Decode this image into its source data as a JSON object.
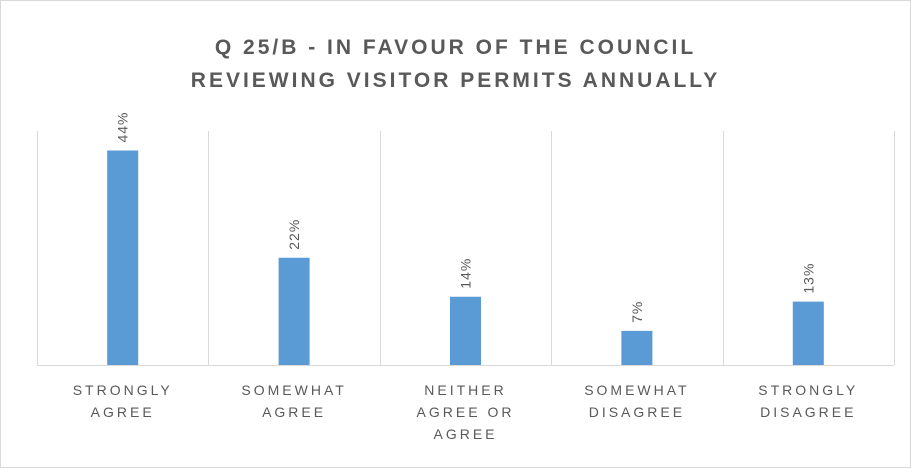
{
  "chart_data": {
    "type": "bar",
    "title": "Q 25/B - IN FAVOUR OF THE COUNCIL REVIEWING VISITOR PERMITS ANNUALLY",
    "title_lines": [
      "Q 25/B - IN FAVOUR OF THE COUNCIL",
      "REVIEWING VISITOR PERMITS ANNUALLY"
    ],
    "categories": [
      "STRONGLY AGREE",
      "SOMEWHAT AGREE",
      "NEITHER AGREE OR AGREE",
      "SOMEWHAT DISAGREE",
      "STRONGLY DISAGREE"
    ],
    "category_lines": [
      [
        "STRONGLY",
        "AGREE"
      ],
      [
        "SOMEWHAT",
        "AGREE"
      ],
      [
        "NEITHER",
        "AGREE OR",
        "AGREE"
      ],
      [
        "SOMEWHAT",
        "DISAGREE"
      ],
      [
        "STRONGLY",
        "DISAGREE"
      ]
    ],
    "values": [
      44,
      22,
      14,
      7,
      13
    ],
    "data_labels": [
      "44%",
      "22%",
      "14%",
      "7%",
      "13%"
    ],
    "value_unit": "%",
    "ylim": [
      0,
      48
    ],
    "xlabel": "",
    "ylabel": "",
    "legend": "none",
    "grid": "vertical category separators",
    "bar_color": "#5b9bd5",
    "text_color": "#595959",
    "gridline_color": "#d9d9d9"
  }
}
